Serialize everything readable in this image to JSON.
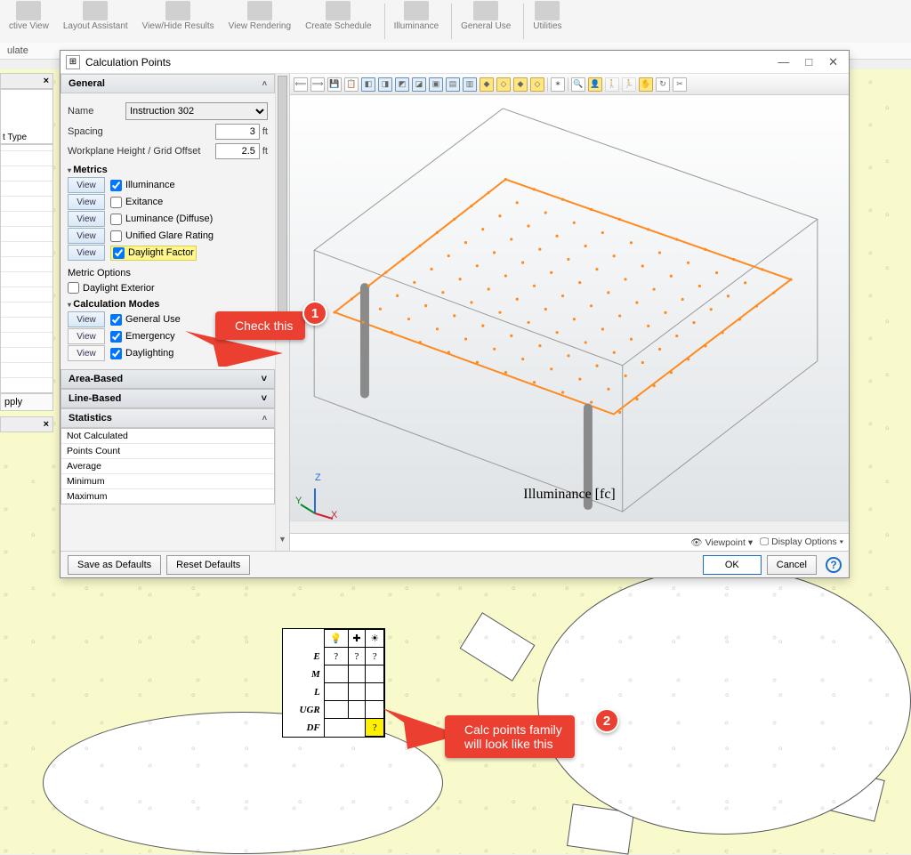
{
  "ribbon": {
    "items": [
      "ctive\nView",
      "Layout\nAssistant",
      "View/Hide\nResults",
      "View\nRendering",
      "Create\nSchedule",
      "Illuminance",
      "General Use",
      "Utilities"
    ],
    "tab": "ulate"
  },
  "leftdock": {
    "hdr1_close": "×",
    "type_label": "t Type",
    "apply": "pply",
    "hdr2_close": "×"
  },
  "window": {
    "title": "Calculation Points",
    "minimize": "—",
    "maximize": "□",
    "close": "✕"
  },
  "general": {
    "header": "General",
    "name_label": "Name",
    "name_value": "Instruction 302",
    "spacing_label": "Spacing",
    "spacing_value": "3",
    "spacing_unit": "ft",
    "wp_label": "Workplane Height / Grid Offset",
    "wp_value": "2.5",
    "wp_unit": "ft"
  },
  "metrics": {
    "header": "Metrics",
    "view": "View",
    "items": [
      {
        "label": "Illuminance",
        "checked": true,
        "hl": false
      },
      {
        "label": "Exitance",
        "checked": false,
        "hl": false
      },
      {
        "label": "Luminance (Diffuse)",
        "checked": false,
        "hl": false
      },
      {
        "label": "Unified Glare Rating",
        "checked": false,
        "hl": false
      },
      {
        "label": "Daylight Factor",
        "checked": true,
        "hl": true
      }
    ],
    "options_label": "Metric Options",
    "daylight_ext": "Daylight Exterior"
  },
  "calcmodes": {
    "header": "Calculation Modes",
    "items": [
      {
        "label": "General Use",
        "checked": true,
        "blue": true
      },
      {
        "label": "Emergency",
        "checked": true,
        "blue": false
      },
      {
        "label": "Daylighting",
        "checked": true,
        "blue": false
      }
    ]
  },
  "sections": {
    "area": "Area-Based",
    "line": "Line-Based",
    "stats": "Statistics"
  },
  "stats": {
    "notcalc": "Not Calculated",
    "rows": [
      "Points Count",
      "Average",
      "Minimum",
      "Maximum"
    ]
  },
  "viewport": {
    "label": "Illuminance [fc]",
    "axis_x": "X",
    "axis_y": "Y",
    "axis_z": "Z",
    "foot_viewpoint": "Viewpoint ▾",
    "foot_display": "Display Options ▾"
  },
  "buttons": {
    "save": "Save as Defaults",
    "reset": "Reset Defaults",
    "ok": "OK",
    "cancel": "Cancel"
  },
  "callouts": {
    "a1_text": "Check this",
    "a1_num": "1",
    "a2_text": "Calc points family\nwill look like this",
    "a2_num": "2"
  },
  "minitable": {
    "col_icons": [
      "💡",
      "✚",
      "☀"
    ],
    "rows": [
      "E",
      "M",
      "L",
      "UGR",
      "DF"
    ],
    "q": "?"
  },
  "colors": {
    "accent_blue": "#1a6fc4",
    "highlight": "#fff68a",
    "callout": "#eb4031",
    "orange": "#ff8a1f"
  }
}
